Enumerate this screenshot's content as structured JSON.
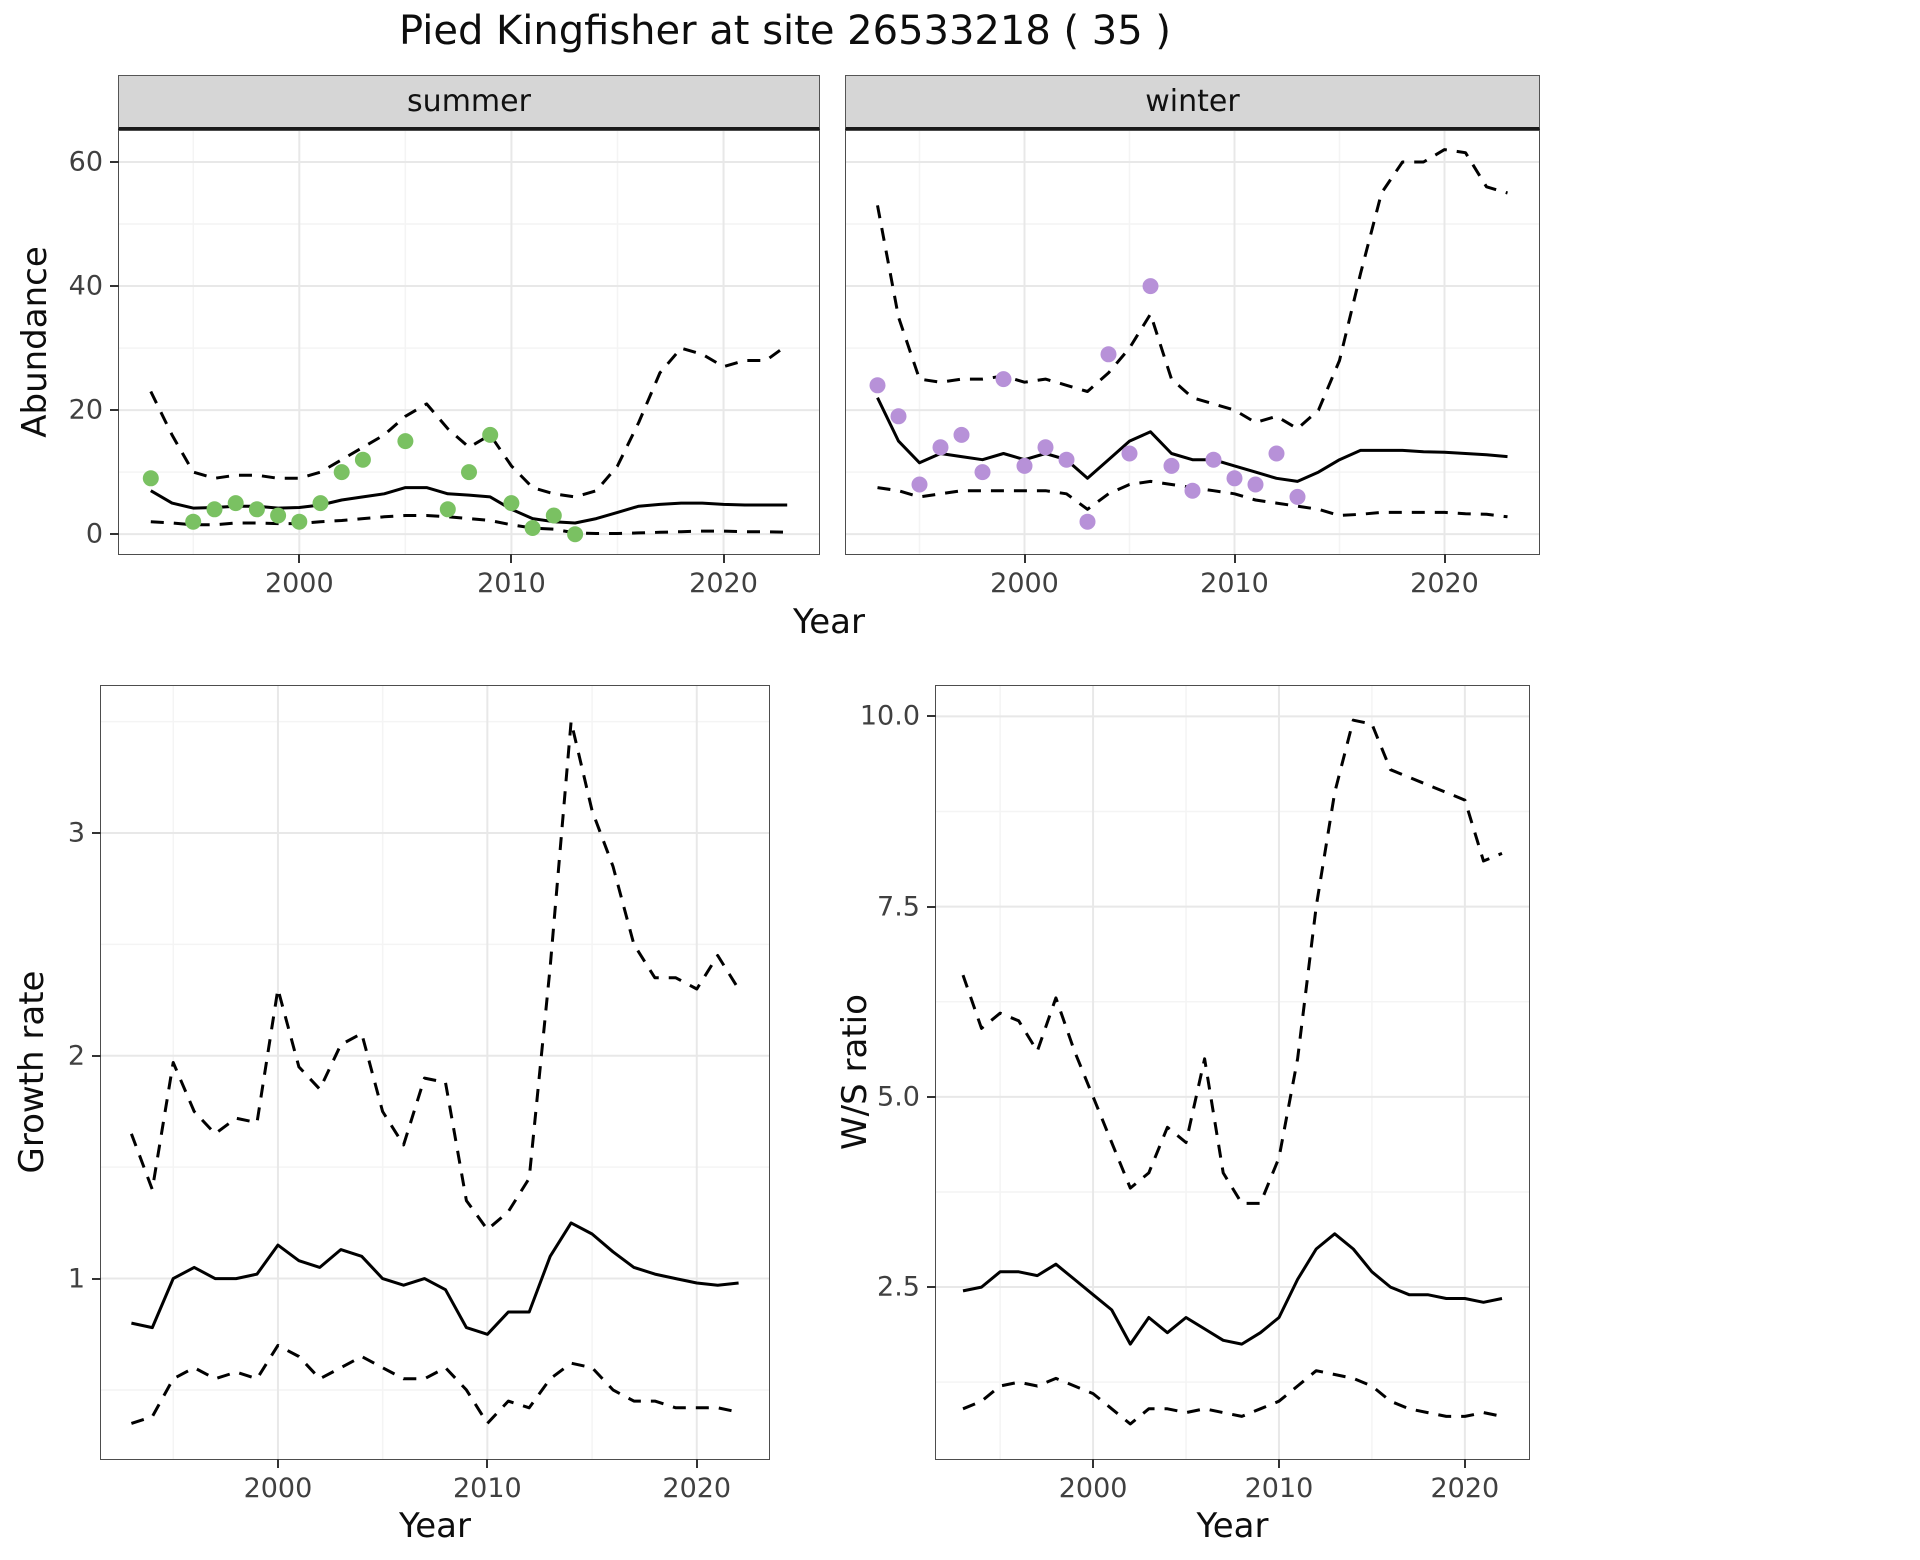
{
  "title": "Pied Kingfisher at site 26533218 ( 35 )",
  "axes": {
    "abundance_label": "Abundance",
    "year_label": "Year",
    "growth_label": "Growth rate",
    "ws_label": "W/S ratio"
  },
  "facets": {
    "summer": "summer",
    "winter": "winter"
  },
  "colors": {
    "summer_points": "#7ac162",
    "winter_points": "#b791d8",
    "line": "#000000",
    "strip_bg": "#d6d6d6"
  },
  "chart_data": [
    {
      "id": "abundance-summer",
      "type": "line",
      "facet": "summer",
      "xlabel": "Year",
      "ylabel": "Abundance",
      "xlim": [
        1991.5,
        2024.5
      ],
      "ylim": [
        -3.2,
        65
      ],
      "xticks": [
        2000,
        2010,
        2020
      ],
      "xtick_labels": [
        "2000",
        "2010",
        "2020"
      ],
      "yticks": [
        0,
        20,
        40,
        60
      ],
      "ytick_labels": [
        "0",
        "20",
        "40",
        "60"
      ],
      "show_ytick_labels": true,
      "grid": true,
      "series": [
        {
          "name": "upper-ci",
          "style": "dashed",
          "color": "#000000",
          "x": [
            1993,
            1994,
            1995,
            1996,
            1997,
            1998,
            1999,
            2000,
            2001,
            2002,
            2003,
            2004,
            2005,
            2006,
            2007,
            2008,
            2009,
            2010,
            2011,
            2012,
            2013,
            2014,
            2015,
            2016,
            2017,
            2018,
            2019,
            2020,
            2021,
            2022,
            2023
          ],
          "y": [
            23,
            16,
            10,
            9,
            9.5,
            9.5,
            9,
            9,
            10,
            12,
            14,
            16,
            19,
            21,
            17,
            14,
            16,
            11,
            7.5,
            6.5,
            6,
            7,
            11,
            18,
            26,
            30,
            29,
            27,
            28,
            28,
            30.5
          ]
        },
        {
          "name": "lower-ci",
          "style": "dashed",
          "color": "#000000",
          "x": [
            1993,
            1994,
            1995,
            1996,
            1997,
            1998,
            1999,
            2000,
            2001,
            2002,
            2003,
            2004,
            2005,
            2006,
            2007,
            2008,
            2009,
            2010,
            2011,
            2012,
            2013,
            2014,
            2015,
            2016,
            2017,
            2018,
            2019,
            2020,
            2021,
            2022,
            2023
          ],
          "y": [
            2,
            1.8,
            1.5,
            1.5,
            1.8,
            1.8,
            1.7,
            1.7,
            2,
            2.2,
            2.5,
            2.8,
            3,
            3,
            2.8,
            2.5,
            2.2,
            1.5,
            1,
            0.8,
            0.2,
            0.1,
            0.1,
            0.2,
            0.3,
            0.4,
            0.5,
            0.5,
            0.4,
            0.4,
            0.3
          ]
        },
        {
          "name": "fitted-mean",
          "style": "solid",
          "color": "#000000",
          "x": [
            1993,
            1994,
            1995,
            1996,
            1997,
            1998,
            1999,
            2000,
            2001,
            2002,
            2003,
            2004,
            2005,
            2006,
            2007,
            2008,
            2009,
            2010,
            2011,
            2012,
            2013,
            2014,
            2015,
            2016,
            2017,
            2018,
            2019,
            2020,
            2021,
            2022,
            2023
          ],
          "y": [
            7,
            5,
            4.2,
            4.3,
            4.5,
            4.5,
            4.2,
            4.3,
            4.7,
            5.5,
            6,
            6.5,
            7.5,
            7.5,
            6.5,
            6.3,
            6,
            4,
            2.5,
            2,
            1.8,
            2.5,
            3.5,
            4.5,
            4.8,
            5,
            5,
            4.8,
            4.7,
            4.7,
            4.7
          ]
        },
        {
          "name": "observed-counts",
          "style": "points",
          "color": "#7ac162",
          "x": [
            1993,
            1995,
            1996,
            1997,
            1998,
            1999,
            2000,
            2001,
            2002,
            2003,
            2005,
            2007,
            2008,
            2009,
            2010,
            2011,
            2012,
            2013
          ],
          "y": [
            9,
            2,
            4,
            5,
            4,
            3,
            2,
            5,
            10,
            12,
            15,
            4,
            10,
            16,
            5,
            1,
            3,
            0
          ]
        }
      ]
    },
    {
      "id": "abundance-winter",
      "type": "line",
      "facet": "winter",
      "xlabel": "Year",
      "ylabel": "Abundance",
      "xlim": [
        1991.5,
        2024.5
      ],
      "ylim": [
        -3.2,
        65
      ],
      "xticks": [
        2000,
        2010,
        2020
      ],
      "xtick_labels": [
        "2000",
        "2010",
        "2020"
      ],
      "yticks": [
        0,
        20,
        40,
        60
      ],
      "ytick_labels": [
        "0",
        "20",
        "40",
        "60"
      ],
      "show_ytick_labels": false,
      "grid": true,
      "series": [
        {
          "name": "upper-ci",
          "style": "dashed",
          "color": "#000000",
          "x": [
            1993,
            1994,
            1995,
            1996,
            1997,
            1998,
            1999,
            2000,
            2001,
            2002,
            2003,
            2004,
            2005,
            2006,
            2007,
            2008,
            2009,
            2010,
            2011,
            2012,
            2013,
            2014,
            2015,
            2016,
            2017,
            2018,
            2019,
            2020,
            2021,
            2022,
            2023
          ],
          "y": [
            53,
            35,
            25,
            24.5,
            25,
            25,
            25.5,
            24.5,
            25,
            24,
            23,
            26,
            30,
            35.5,
            25,
            22,
            21,
            20,
            18,
            19,
            17,
            20,
            28,
            42,
            55,
            60,
            60,
            62,
            61.5,
            56,
            55
          ]
        },
        {
          "name": "lower-ci",
          "style": "dashed",
          "color": "#000000",
          "x": [
            1993,
            1994,
            1995,
            1996,
            1997,
            1998,
            1999,
            2000,
            2001,
            2002,
            2003,
            2004,
            2005,
            2006,
            2007,
            2008,
            2009,
            2010,
            2011,
            2012,
            2013,
            2014,
            2015,
            2016,
            2017,
            2018,
            2019,
            2020,
            2021,
            2022,
            2023
          ],
          "y": [
            7.5,
            7,
            6,
            6.5,
            7,
            7,
            7,
            7,
            7,
            6.5,
            4,
            6.5,
            8,
            8.5,
            8,
            7.5,
            7,
            6.5,
            5.5,
            5,
            4.5,
            4,
            3,
            3.2,
            3.5,
            3.5,
            3.5,
            3.5,
            3.3,
            3.2,
            2.8
          ]
        },
        {
          "name": "fitted-mean",
          "style": "solid",
          "color": "#000000",
          "x": [
            1993,
            1994,
            1995,
            1996,
            1997,
            1998,
            1999,
            2000,
            2001,
            2002,
            2003,
            2004,
            2005,
            2006,
            2007,
            2008,
            2009,
            2010,
            2011,
            2012,
            2013,
            2014,
            2015,
            2016,
            2017,
            2018,
            2019,
            2020,
            2021,
            2022,
            2023
          ],
          "y": [
            22,
            15,
            11.5,
            13,
            12.5,
            12,
            13,
            12,
            13,
            12,
            9,
            12,
            15,
            16.5,
            13,
            12,
            12,
            11,
            10,
            9,
            8.5,
            10,
            12,
            13.5,
            13.5,
            13.5,
            13.3,
            13.2,
            13,
            12.8,
            12.5
          ]
        },
        {
          "name": "observed-counts",
          "style": "points",
          "color": "#b791d8",
          "x": [
            1993,
            1994,
            1995,
            1996,
            1997,
            1998,
            1999,
            2000,
            2001,
            2002,
            2003,
            2004,
            2005,
            2006,
            2007,
            2008,
            2009,
            2010,
            2011,
            2012,
            2013
          ],
          "y": [
            24,
            19,
            8,
            14,
            16,
            10,
            25,
            11,
            14,
            12,
            2,
            29,
            13,
            40,
            11,
            7,
            12,
            9,
            8,
            13,
            6
          ]
        }
      ]
    },
    {
      "id": "growth-rate",
      "type": "line",
      "xlabel": "Year",
      "ylabel": "Growth rate",
      "xlim": [
        1991.55,
        2023.45
      ],
      "ylim": [
        0.19,
        3.66
      ],
      "xticks": [
        2000,
        2010,
        2020
      ],
      "xtick_labels": [
        "2000",
        "2010",
        "2020"
      ],
      "yticks": [
        1,
        2,
        3
      ],
      "ytick_labels": [
        "1",
        "2",
        "3"
      ],
      "show_ytick_labels": true,
      "grid": true,
      "series": [
        {
          "name": "upper-ci",
          "style": "dashed",
          "color": "#000000",
          "x": [
            1993,
            1994,
            1995,
            1996,
            1997,
            1998,
            1999,
            2000,
            2001,
            2002,
            2003,
            2004,
            2005,
            2006,
            2007,
            2008,
            2009,
            2010,
            2011,
            2012,
            2013,
            2014,
            2015,
            2016,
            2017,
            2018,
            2019,
            2020,
            2021,
            2022
          ],
          "y": [
            1.65,
            1.4,
            1.97,
            1.75,
            1.65,
            1.72,
            1.7,
            2.3,
            1.95,
            1.85,
            2.05,
            2.1,
            1.75,
            1.6,
            1.9,
            1.88,
            1.35,
            1.22,
            1.3,
            1.45,
            2.4,
            3.5,
            3.1,
            2.85,
            2.5,
            2.35,
            2.35,
            2.3,
            2.45,
            2.3
          ]
        },
        {
          "name": "lower-ci",
          "style": "dashed",
          "color": "#000000",
          "x": [
            1993,
            1994,
            1995,
            1996,
            1997,
            1998,
            1999,
            2000,
            2001,
            2002,
            2003,
            2004,
            2005,
            2006,
            2007,
            2008,
            2009,
            2010,
            2011,
            2012,
            2013,
            2014,
            2015,
            2016,
            2017,
            2018,
            2019,
            2020,
            2021,
            2022
          ],
          "y": [
            0.35,
            0.38,
            0.55,
            0.6,
            0.55,
            0.58,
            0.55,
            0.7,
            0.65,
            0.55,
            0.6,
            0.65,
            0.6,
            0.55,
            0.55,
            0.6,
            0.5,
            0.35,
            0.45,
            0.42,
            0.55,
            0.62,
            0.6,
            0.5,
            0.45,
            0.45,
            0.42,
            0.42,
            0.42,
            0.4
          ]
        },
        {
          "name": "mean",
          "style": "solid",
          "color": "#000000",
          "x": [
            1993,
            1994,
            1995,
            1996,
            1997,
            1998,
            1999,
            2000,
            2001,
            2002,
            2003,
            2004,
            2005,
            2006,
            2007,
            2008,
            2009,
            2010,
            2011,
            2012,
            2013,
            2014,
            2015,
            2016,
            2017,
            2018,
            2019,
            2020,
            2021,
            2022
          ],
          "y": [
            0.8,
            0.78,
            1.0,
            1.05,
            1.0,
            1.0,
            1.02,
            1.15,
            1.08,
            1.05,
            1.13,
            1.1,
            1.0,
            0.97,
            1.0,
            0.95,
            0.78,
            0.75,
            0.85,
            0.85,
            1.1,
            1.25,
            1.2,
            1.12,
            1.05,
            1.02,
            1.0,
            0.98,
            0.97,
            0.98
          ]
        }
      ]
    },
    {
      "id": "ws-ratio",
      "type": "line",
      "xlabel": "Year",
      "ylabel": "W/S ratio",
      "xlim": [
        1991.55,
        2023.45
      ],
      "ylim": [
        0.24,
        10.4
      ],
      "xticks": [
        2000,
        2010,
        2020
      ],
      "xtick_labels": [
        "2000",
        "2010",
        "2020"
      ],
      "yticks": [
        2.5,
        5.0,
        7.5,
        10.0
      ],
      "ytick_labels": [
        "2.5",
        "5.0",
        "7.5",
        "10.0"
      ],
      "show_ytick_labels": true,
      "grid": true,
      "series": [
        {
          "name": "upper-ci",
          "style": "dashed",
          "color": "#000000",
          "x": [
            1993,
            1994,
            1995,
            1996,
            1997,
            1998,
            1999,
            2000,
            2001,
            2002,
            2003,
            2004,
            2005,
            2006,
            2007,
            2008,
            2009,
            2010,
            2011,
            2012,
            2013,
            2014,
            2015,
            2016,
            2017,
            2018,
            2019,
            2020,
            2021,
            2022
          ],
          "y": [
            6.6,
            5.9,
            6.1,
            6.0,
            5.6,
            6.3,
            5.6,
            5.0,
            4.4,
            3.8,
            4.0,
            4.6,
            4.4,
            5.5,
            4.0,
            3.6,
            3.6,
            4.2,
            5.5,
            7.5,
            9.0,
            9.95,
            9.9,
            9.3,
            9.2,
            9.1,
            9.0,
            8.9,
            8.1,
            8.2
          ]
        },
        {
          "name": "lower-ci",
          "style": "dashed",
          "color": "#000000",
          "x": [
            1993,
            1994,
            1995,
            1996,
            1997,
            1998,
            1999,
            2000,
            2001,
            2002,
            2003,
            2004,
            2005,
            2006,
            2007,
            2008,
            2009,
            2010,
            2011,
            2012,
            2013,
            2014,
            2015,
            2016,
            2017,
            2018,
            2019,
            2020,
            2021,
            2022
          ],
          "y": [
            0.9,
            1.0,
            1.2,
            1.25,
            1.2,
            1.3,
            1.2,
            1.1,
            0.9,
            0.7,
            0.9,
            0.9,
            0.85,
            0.9,
            0.85,
            0.8,
            0.9,
            1.0,
            1.2,
            1.4,
            1.35,
            1.3,
            1.2,
            1.0,
            0.9,
            0.85,
            0.8,
            0.8,
            0.85,
            0.8
          ]
        },
        {
          "name": "mean",
          "style": "solid",
          "color": "#000000",
          "x": [
            1993,
            1994,
            1995,
            1996,
            1997,
            1998,
            1999,
            2000,
            2001,
            2002,
            2003,
            2004,
            2005,
            2006,
            2007,
            2008,
            2009,
            2010,
            2011,
            2012,
            2013,
            2014,
            2015,
            2016,
            2017,
            2018,
            2019,
            2020,
            2021,
            2022
          ],
          "y": [
            2.45,
            2.5,
            2.7,
            2.7,
            2.65,
            2.8,
            2.6,
            2.4,
            2.2,
            1.75,
            2.1,
            1.9,
            2.1,
            1.95,
            1.8,
            1.75,
            1.9,
            2.1,
            2.6,
            3.0,
            3.2,
            3.0,
            2.7,
            2.5,
            2.4,
            2.4,
            2.35,
            2.35,
            2.3,
            2.35
          ]
        }
      ]
    }
  ]
}
